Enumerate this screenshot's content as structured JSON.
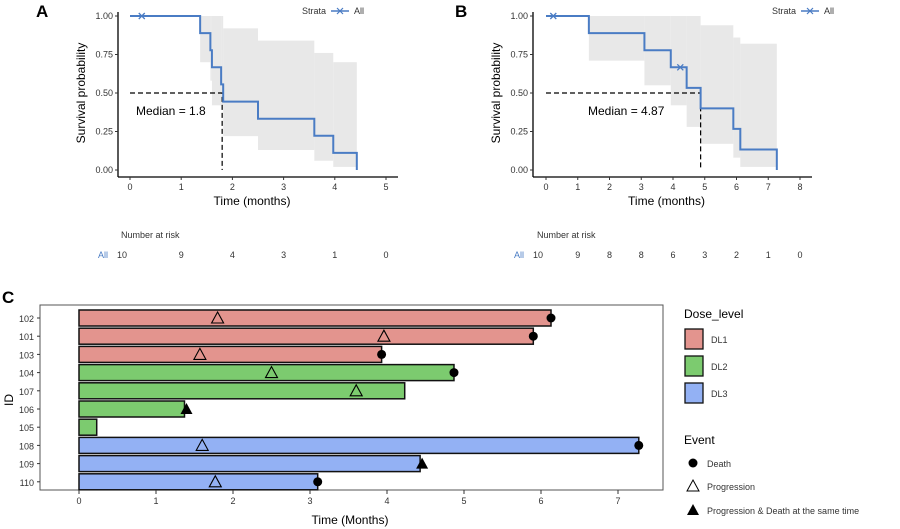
{
  "chart_data": [
    {
      "panel_label": "A",
      "type": "line",
      "subtype": "kaplan-meier",
      "xlabel": "Time (months)",
      "ylabel": "Survival probability",
      "xlim": [
        0,
        5
      ],
      "ylim": [
        0,
        1
      ],
      "x_ticks": [
        "0",
        "1",
        "2",
        "3",
        "4",
        "5"
      ],
      "y_ticks": [
        "0.00",
        "0.25",
        "0.50",
        "0.75",
        "1.00"
      ],
      "legend": {
        "title": "Strata",
        "entries": [
          "All"
        ],
        "position": "top-right"
      },
      "color": "#4a7cc4",
      "ci_color": "#e8e8e8",
      "steps": {
        "time": [
          0,
          1.37,
          1.57,
          1.6,
          1.78,
          1.82,
          2.5,
          3.6,
          3.97,
          4.43
        ],
        "survival": [
          1.0,
          0.889,
          0.778,
          0.667,
          0.556,
          0.444,
          0.333,
          0.222,
          0.111,
          0.0
        ],
        "ci_upper": [
          1.0,
          1.0,
          1.0,
          1.0,
          1.0,
          0.92,
          0.84,
          0.76,
          0.7,
          0.7
        ],
        "ci_lower": [
          1.0,
          0.7,
          0.58,
          0.42,
          0.42,
          0.22,
          0.13,
          0.06,
          0.02,
          0.02
        ]
      },
      "censored": [
        {
          "time": 0.23,
          "survival": 1.0
        }
      ],
      "median": {
        "value": 1.8,
        "label": "Median = 1.8"
      },
      "risk_table": {
        "title": "Number at risk",
        "strata": "All",
        "times": [
          0,
          1,
          2,
          3,
          4,
          5
        ],
        "values": [
          "10",
          "9",
          "4",
          "3",
          "1",
          "0"
        ]
      }
    },
    {
      "panel_label": "B",
      "type": "line",
      "subtype": "kaplan-meier",
      "xlabel": "Time (months)",
      "ylabel": "Survival probability",
      "xlim": [
        0,
        8
      ],
      "ylim": [
        0,
        1
      ],
      "x_ticks": [
        "0",
        "1",
        "2",
        "3",
        "4",
        "5",
        "6",
        "7",
        "8"
      ],
      "y_ticks": [
        "0.00",
        "0.25",
        "0.50",
        "0.75",
        "1.00"
      ],
      "legend": {
        "title": "Strata",
        "entries": [
          "All"
        ],
        "position": "top-right"
      },
      "color": "#4a7cc4",
      "ci_color": "#e8e8e8",
      "steps": {
        "time": [
          0,
          1.35,
          3.1,
          3.93,
          4.43,
          4.87,
          5.9,
          6.12,
          7.27
        ],
        "survival": [
          1.0,
          0.889,
          0.778,
          0.667,
          0.533,
          0.4,
          0.267,
          0.133,
          0.0
        ],
        "ci_upper": [
          1.0,
          1.0,
          1.0,
          1.0,
          1.0,
          0.94,
          0.86,
          0.82,
          0.82
        ],
        "ci_lower": [
          1.0,
          0.71,
          0.55,
          0.42,
          0.28,
          0.17,
          0.08,
          0.02,
          0.02
        ]
      },
      "censored": [
        {
          "time": 0.23,
          "survival": 1.0
        },
        {
          "time": 4.23,
          "survival": 0.667
        }
      ],
      "median": {
        "value": 4.87,
        "label": "Median = 4.87"
      },
      "risk_table": {
        "title": "Number at risk",
        "strata": "All",
        "times": [
          0,
          1,
          2,
          3,
          4,
          5,
          6,
          7,
          8
        ],
        "values": [
          "10",
          "9",
          "8",
          "8",
          "6",
          "3",
          "2",
          "1",
          "0"
        ]
      }
    },
    {
      "panel_label": "C",
      "type": "bar",
      "subtype": "swimmer",
      "xlabel": "Time (Months)",
      "ylabel": "ID",
      "xlim": [
        0,
        7.4
      ],
      "x_ticks": [
        "0",
        "1",
        "2",
        "3",
        "4",
        "5",
        "6",
        "7"
      ],
      "dose_colors": {
        "DL1": "#e3948e",
        "DL2": "#7ccb6f",
        "DL3": "#93b1f4"
      },
      "rows": [
        {
          "id": "102",
          "dose": "DL1",
          "time": 6.13,
          "progression": 1.8,
          "death": 6.13
        },
        {
          "id": "101",
          "dose": "DL1",
          "time": 5.9,
          "progression": 3.96,
          "death": 5.9
        },
        {
          "id": "103",
          "dose": "DL1",
          "time": 3.93,
          "progression": 1.57,
          "death": 3.93
        },
        {
          "id": "104",
          "dose": "DL2",
          "time": 4.87,
          "progression": 2.5,
          "death": 4.87
        },
        {
          "id": "107",
          "dose": "DL2",
          "time": 4.23,
          "progression": 3.6
        },
        {
          "id": "106",
          "dose": "DL2",
          "time": 1.37,
          "prog_death": 1.37
        },
        {
          "id": "105",
          "dose": "DL2",
          "time": 0.23
        },
        {
          "id": "108",
          "dose": "DL3",
          "time": 7.27,
          "progression": 1.6,
          "death": 7.27
        },
        {
          "id": "109",
          "dose": "DL3",
          "time": 4.43,
          "prog_death": 4.43
        },
        {
          "id": "110",
          "dose": "DL3",
          "time": 3.1,
          "progression": 1.77,
          "death": 3.1
        }
      ],
      "legend": {
        "dose_title": "Dose_level",
        "dose_entries": [
          "DL1",
          "DL2",
          "DL3"
        ],
        "event_title": "Event",
        "event_entries": [
          "Death",
          "Progression",
          "Progression & Death at the same time"
        ],
        "position": "right"
      }
    }
  ]
}
